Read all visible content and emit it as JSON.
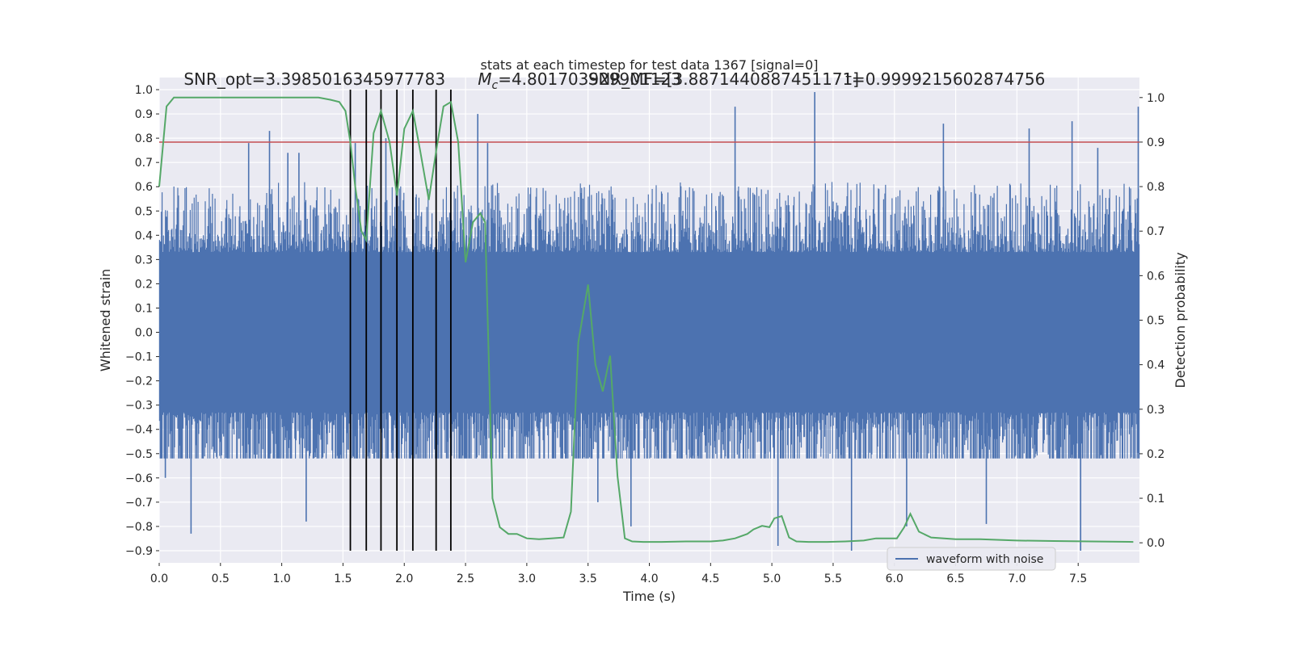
{
  "chart_data": {
    "type": "line",
    "title": "stats at each timestep for test data 1367 [signal=0]",
    "xlabel": "Time (s)",
    "ylabel": "Whitened strain",
    "y2label": "Detection probability",
    "xlim": [
      0.0,
      8.0
    ],
    "ylim": [
      -0.95,
      1.05
    ],
    "y2lim": [
      -0.045,
      1.045
    ],
    "x_ticks": [
      0.0,
      0.5,
      1.0,
      1.5,
      2.0,
      2.5,
      3.0,
      3.5,
      4.0,
      4.5,
      5.0,
      5.5,
      6.0,
      6.5,
      7.0,
      7.5
    ],
    "x_tick_labels": [
      "0.0",
      "0.5",
      "1.0",
      "1.5",
      "2.0",
      "2.5",
      "3.0",
      "3.5",
      "4.0",
      "4.5",
      "5.0",
      "5.5",
      "6.0",
      "6.5",
      "7.0",
      "7.5"
    ],
    "y_ticks": [
      -0.9,
      -0.8,
      -0.7,
      -0.6,
      -0.5,
      -0.4,
      -0.3,
      -0.2,
      -0.1,
      0.0,
      0.1,
      0.2,
      0.3,
      0.4,
      0.5,
      0.6,
      0.7,
      0.8,
      0.9,
      1.0
    ],
    "y_tick_labels": [
      "−0.9",
      "−0.8",
      "−0.7",
      "−0.6",
      "−0.5",
      "−0.4",
      "−0.3",
      "−0.2",
      "−0.1",
      "0.0",
      "0.1",
      "0.2",
      "0.3",
      "0.4",
      "0.5",
      "0.6",
      "0.7",
      "0.8",
      "0.9",
      "1.0"
    ],
    "y2_ticks": [
      0.0,
      0.1,
      0.2,
      0.3,
      0.4,
      0.5,
      0.6,
      0.7,
      0.8,
      0.9,
      1.0
    ],
    "y2_tick_labels": [
      "0.0",
      "0.1",
      "0.2",
      "0.3",
      "0.4",
      "0.5",
      "0.6",
      "0.7",
      "0.8",
      "0.9",
      "1.0"
    ],
    "grid": true,
    "legend": {
      "position": "lower-right",
      "entries": [
        {
          "label": "waveform with noise",
          "color": "#4c72b0"
        }
      ]
    },
    "annotations": [
      {
        "text": "SNR_opt=3.3985016345977783",
        "x": 0.2,
        "y": 1.02
      },
      {
        "text": "M",
        "sub": "c",
        "rest": "=4.801703929901123",
        "x": 2.6,
        "y": 1.02
      },
      {
        "text": "SNR_MF=[3.8871440887451171]",
        "x": 3.5,
        "y": 1.02
      },
      {
        "text": "t=0.9999215602874756",
        "x": 5.6,
        "y": 1.02
      }
    ],
    "waveform": {
      "name": "waveform with noise",
      "color": "#4c72b0",
      "band": 0.33,
      "envelope_max": 0.62,
      "envelope_min": -0.5,
      "peaks": [
        {
          "x": 0.05,
          "y": -0.6
        },
        {
          "x": 0.26,
          "y": -0.83
        },
        {
          "x": 0.73,
          "y": 0.78
        },
        {
          "x": 0.9,
          "y": 0.83
        },
        {
          "x": 1.05,
          "y": 0.74
        },
        {
          "x": 1.14,
          "y": 0.74
        },
        {
          "x": 1.2,
          "y": -0.78
        },
        {
          "x": 1.6,
          "y": 0.78
        },
        {
          "x": 1.85,
          "y": 0.8
        },
        {
          "x": 2.6,
          "y": 0.9
        },
        {
          "x": 2.68,
          "y": 0.78
        },
        {
          "x": 3.58,
          "y": -0.7
        },
        {
          "x": 3.85,
          "y": -0.8
        },
        {
          "x": 4.7,
          "y": 0.93
        },
        {
          "x": 5.05,
          "y": -0.88
        },
        {
          "x": 5.35,
          "y": 0.99
        },
        {
          "x": 5.65,
          "y": -0.9
        },
        {
          "x": 6.1,
          "y": -0.8
        },
        {
          "x": 6.4,
          "y": 0.86
        },
        {
          "x": 6.75,
          "y": -0.79
        },
        {
          "x": 7.1,
          "y": 0.84
        },
        {
          "x": 7.45,
          "y": 0.87
        },
        {
          "x": 7.52,
          "y": -0.9
        },
        {
          "x": 7.66,
          "y": 0.76
        },
        {
          "x": 7.99,
          "y": 0.93
        }
      ]
    },
    "threshold": {
      "value": 0.9,
      "axis": "y2",
      "color": "#c44e52"
    },
    "vlines": {
      "x": [
        1.56,
        1.69,
        1.81,
        1.94,
        2.07,
        2.26,
        2.38
      ],
      "ymin": -0.9,
      "ymax": 1.0,
      "color": "#000000"
    },
    "detection_probability": {
      "color": "#55a868",
      "x": [
        0.0,
        0.06,
        0.12,
        0.2,
        0.3,
        0.4,
        0.5,
        0.6,
        0.7,
        0.8,
        0.9,
        1.0,
        1.1,
        1.2,
        1.3,
        1.4,
        1.47,
        1.52,
        1.56,
        1.6,
        1.65,
        1.69,
        1.75,
        1.81,
        1.88,
        1.94,
        2.0,
        2.07,
        2.13,
        2.2,
        2.26,
        2.32,
        2.38,
        2.44,
        2.5,
        2.56,
        2.62,
        2.66,
        2.72,
        2.78,
        2.85,
        2.92,
        3.0,
        3.1,
        3.2,
        3.3,
        3.36,
        3.42,
        3.5,
        3.56,
        3.62,
        3.68,
        3.74,
        3.8,
        3.86,
        3.95,
        4.1,
        4.3,
        4.5,
        4.6,
        4.7,
        4.8,
        4.85,
        4.92,
        4.98,
        5.02,
        5.08,
        5.14,
        5.2,
        5.3,
        5.45,
        5.6,
        5.75,
        5.85,
        6.02,
        6.08,
        6.13,
        6.2,
        6.3,
        6.5,
        6.7,
        7.0,
        7.3,
        7.6,
        7.95
      ],
      "y": [
        0.8,
        0.98,
        1.0,
        1.0,
        1.0,
        1.0,
        1.0,
        1.0,
        1.0,
        1.0,
        1.0,
        1.0,
        1.0,
        1.0,
        1.0,
        0.995,
        0.99,
        0.97,
        0.9,
        0.8,
        0.7,
        0.68,
        0.92,
        0.97,
        0.9,
        0.78,
        0.93,
        0.97,
        0.88,
        0.77,
        0.88,
        0.98,
        0.99,
        0.9,
        0.63,
        0.72,
        0.74,
        0.72,
        0.1,
        0.035,
        0.02,
        0.02,
        0.01,
        0.008,
        0.01,
        0.012,
        0.07,
        0.45,
        0.58,
        0.4,
        0.34,
        0.42,
        0.15,
        0.01,
        0.003,
        0.002,
        0.002,
        0.003,
        0.003,
        0.005,
        0.01,
        0.02,
        0.03,
        0.038,
        0.035,
        0.055,
        0.06,
        0.012,
        0.003,
        0.002,
        0.002,
        0.003,
        0.005,
        0.01,
        0.01,
        0.035,
        0.065,
        0.025,
        0.012,
        0.008,
        0.008,
        0.005,
        0.004,
        0.003,
        0.002
      ]
    }
  }
}
